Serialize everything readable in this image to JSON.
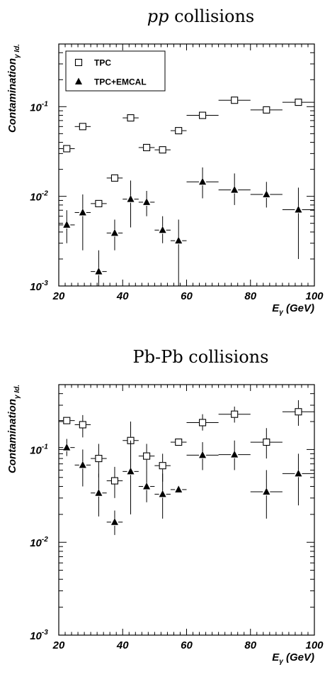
{
  "chart_data": [
    {
      "type": "scatter",
      "title_italic": "pp",
      "title_rest": " collisions",
      "ylabel_main": "Contamination",
      "ylabel_sub": "γ Id.",
      "xlabel_main": "E",
      "xlabel_sub": "γ",
      "xlabel_unit": " (GeV)",
      "x_ticks": [
        "20",
        "40",
        "60",
        "80",
        "100"
      ],
      "y_ticks": [
        {
          "base": "10",
          "exp": "-3"
        },
        {
          "base": "10",
          "exp": "-2"
        },
        {
          "base": "10",
          "exp": "-1"
        }
      ],
      "xlim": [
        20,
        100
      ],
      "ylim": [
        0.001,
        0.5
      ],
      "yscale": "log",
      "legend": {
        "placement": "top-left",
        "entries": [
          {
            "label": "TPC",
            "marker": "open-square"
          },
          {
            "label": "TPC+EMCAL",
            "marker": "filled-triangle"
          }
        ]
      },
      "series": [
        {
          "marker": "open-square",
          "points": [
            {
              "x": 22.5,
              "y": 0.034,
              "xerr": 2.5
            },
            {
              "x": 27.5,
              "y": 0.06,
              "xerr": 2.5
            },
            {
              "x": 42.5,
              "y": 0.075,
              "xerr": 2.5
            },
            {
              "x": 47.5,
              "y": 0.035,
              "xerr": 2.5
            },
            {
              "x": 52.5,
              "y": 0.033,
              "xerr": 2.5
            },
            {
              "x": 57.5,
              "y": 0.054,
              "xerr": 2.5
            },
            {
              "x": 65.0,
              "y": 0.08,
              "xerr": 5.0
            },
            {
              "x": 75.0,
              "y": 0.118,
              "xerr": 5.0
            },
            {
              "x": 85.0,
              "y": 0.092,
              "xerr": 5.0
            },
            {
              "x": 95.0,
              "y": 0.112,
              "xerr": 5.0
            },
            {
              "x": 32.5,
              "y": 0.0083,
              "xerr": 2.5
            },
            {
              "x": 37.5,
              "y": 0.016,
              "xerr": 2.5
            }
          ]
        },
        {
          "marker": "filled-triangle",
          "points": [
            {
              "x": 22.5,
              "y": 0.0048,
              "xerr": 2.5,
              "ylo": 0.003,
              "yhi": 0.007
            },
            {
              "x": 27.5,
              "y": 0.0066,
              "xerr": 2.5,
              "ylo": 0.0025,
              "yhi": 0.0105
            },
            {
              "x": 32.5,
              "y": 0.00145,
              "xerr": 2.5,
              "ylo": 0.001,
              "yhi": 0.0025
            },
            {
              "x": 37.5,
              "y": 0.0039,
              "xerr": 2.5,
              "ylo": 0.0025,
              "yhi": 0.0055
            },
            {
              "x": 42.5,
              "y": 0.0093,
              "xerr": 2.5,
              "ylo": 0.0045,
              "yhi": 0.015
            },
            {
              "x": 47.5,
              "y": 0.0086,
              "xerr": 2.5,
              "ylo": 0.006,
              "yhi": 0.0115
            },
            {
              "x": 52.5,
              "y": 0.0042,
              "xerr": 2.5,
              "ylo": 0.003,
              "yhi": 0.006
            },
            {
              "x": 57.5,
              "y": 0.0032,
              "xerr": 2.5,
              "ylo": 0.001,
              "yhi": 0.0055
            },
            {
              "x": 65.0,
              "y": 0.0145,
              "xerr": 5.0,
              "ylo": 0.0095,
              "yhi": 0.021
            },
            {
              "x": 75.0,
              "y": 0.0118,
              "xerr": 5.0,
              "ylo": 0.008,
              "yhi": 0.018
            },
            {
              "x": 85.0,
              "y": 0.0105,
              "xerr": 5.0,
              "ylo": 0.0075,
              "yhi": 0.0145
            },
            {
              "x": 95.0,
              "y": 0.0071,
              "xerr": 5.0,
              "ylo": 0.002,
              "yhi": 0.0125
            }
          ]
        }
      ]
    },
    {
      "type": "scatter",
      "title_italic": "",
      "title_rest": "Pb-Pb collisions",
      "ylabel_main": "Contamination",
      "ylabel_sub": "γ Id.",
      "xlabel_main": "E",
      "xlabel_sub": "γ",
      "xlabel_unit": " (GeV)",
      "x_ticks": [
        "20",
        "40",
        "60",
        "80",
        "100"
      ],
      "y_ticks": [
        {
          "base": "10",
          "exp": "-3"
        },
        {
          "base": "10",
          "exp": "-2"
        },
        {
          "base": "10",
          "exp": "-1"
        }
      ],
      "xlim": [
        20,
        100
      ],
      "ylim": [
        0.001,
        0.5
      ],
      "yscale": "log",
      "legend": null,
      "series": [
        {
          "marker": "open-square",
          "points": [
            {
              "x": 22.5,
              "y": 0.205,
              "xerr": 2.5
            },
            {
              "x": 27.5,
              "y": 0.185,
              "xerr": 2.5,
              "ylo": 0.135,
              "yhi": 0.235
            },
            {
              "x": 32.5,
              "y": 0.08,
              "xerr": 2.5,
              "ylo": 0.05,
              "yhi": 0.115
            },
            {
              "x": 37.5,
              "y": 0.046,
              "xerr": 2.5,
              "ylo": 0.03,
              "yhi": 0.065
            },
            {
              "x": 42.5,
              "y": 0.125,
              "xerr": 2.5,
              "ylo": 0.06,
              "yhi": 0.2
            },
            {
              "x": 47.5,
              "y": 0.085,
              "xerr": 2.5,
              "ylo": 0.06,
              "yhi": 0.115
            },
            {
              "x": 52.5,
              "y": 0.067,
              "xerr": 2.5,
              "ylo": 0.045,
              "yhi": 0.09
            },
            {
              "x": 57.5,
              "y": 0.12,
              "xerr": 2.5
            },
            {
              "x": 65.0,
              "y": 0.195,
              "xerr": 5.0,
              "ylo": 0.16,
              "yhi": 0.24
            },
            {
              "x": 75.0,
              "y": 0.24,
              "xerr": 5.0,
              "ylo": 0.195,
              "yhi": 0.29
            },
            {
              "x": 85.0,
              "y": 0.12,
              "xerr": 5.0,
              "ylo": 0.08,
              "yhi": 0.17
            },
            {
              "x": 95.0,
              "y": 0.255,
              "xerr": 5.0,
              "ylo": 0.18,
              "yhi": 0.34
            }
          ]
        },
        {
          "marker": "filled-triangle",
          "points": [
            {
              "x": 22.5,
              "y": 0.105,
              "xerr": 2.5,
              "ylo": 0.085,
              "yhi": 0.13
            },
            {
              "x": 27.5,
              "y": 0.068,
              "xerr": 2.5,
              "ylo": 0.04,
              "yhi": 0.1
            },
            {
              "x": 32.5,
              "y": 0.034,
              "xerr": 2.5,
              "ylo": 0.019,
              "yhi": 0.055
            },
            {
              "x": 37.5,
              "y": 0.0165,
              "xerr": 2.5,
              "ylo": 0.012,
              "yhi": 0.022
            },
            {
              "x": 42.5,
              "y": 0.058,
              "xerr": 2.5,
              "ylo": 0.02,
              "yhi": 0.125
            },
            {
              "x": 47.5,
              "y": 0.04,
              "xerr": 2.5,
              "ylo": 0.027,
              "yhi": 0.06
            },
            {
              "x": 52.5,
              "y": 0.033,
              "xerr": 2.5,
              "ylo": 0.018,
              "yhi": 0.055
            },
            {
              "x": 57.5,
              "y": 0.037,
              "xerr": 2.5
            },
            {
              "x": 65.0,
              "y": 0.087,
              "xerr": 5.0,
              "ylo": 0.06,
              "yhi": 0.12
            },
            {
              "x": 75.0,
              "y": 0.088,
              "xerr": 5.0,
              "ylo": 0.06,
              "yhi": 0.125
            },
            {
              "x": 85.0,
              "y": 0.035,
              "xerr": 5.0,
              "ylo": 0.018,
              "yhi": 0.06
            },
            {
              "x": 95.0,
              "y": 0.055,
              "xerr": 5.0,
              "ylo": 0.025,
              "yhi": 0.09
            }
          ]
        }
      ]
    }
  ]
}
